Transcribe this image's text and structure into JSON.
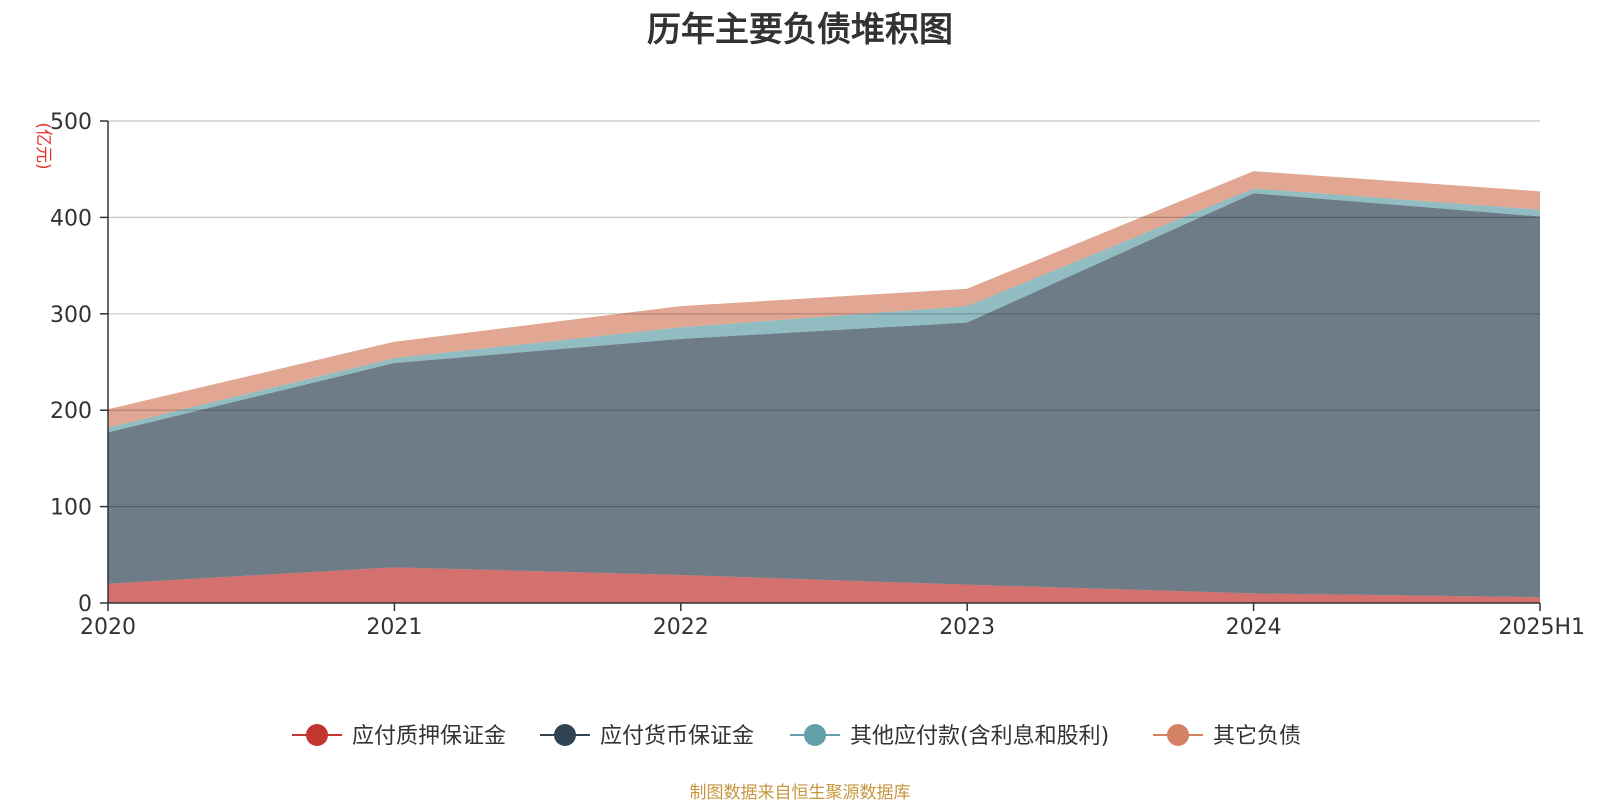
{
  "chart_data": {
    "type": "area",
    "title": "历年主要负债堆积图",
    "unit": "(亿元)",
    "categories": [
      "2020",
      "2021",
      "2022",
      "2023",
      "2024",
      "2025H1"
    ],
    "ylim": [
      0,
      500
    ],
    "yticks": [
      "0",
      "100",
      "200",
      "300",
      "400",
      "500"
    ],
    "stacked": true,
    "grid": true,
    "legend_position": "bottom",
    "series": [
      {
        "name": "应付质押保证金",
        "color": "#c23531",
        "values": [
          20,
          37,
          29,
          19,
          10,
          6
        ]
      },
      {
        "name": "应付货币保证金",
        "color": "#2f4554",
        "values": [
          157,
          212,
          245,
          272,
          415,
          395
        ]
      },
      {
        "name": "其他应付款(含利息和股利)",
        "color": "#61a0a8",
        "values": [
          5,
          5,
          12,
          17,
          5,
          7
        ]
      },
      {
        "name": "其它负债",
        "color": "#d48265",
        "values": [
          19,
          17,
          22,
          18,
          18,
          19
        ]
      }
    ]
  },
  "source_text": "制图数据来自恒生聚源数据库"
}
